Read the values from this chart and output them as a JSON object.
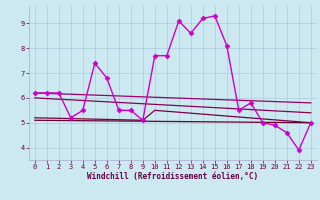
{
  "xlabel": "Windchill (Refroidissement éolien,°C)",
  "background_color": "#cce8f0",
  "grid_color": "#aaccdd",
  "xlim": [
    -0.5,
    23.5
  ],
  "ylim": [
    3.5,
    9.7
  ],
  "yticks": [
    4,
    5,
    6,
    7,
    8,
    9
  ],
  "xticks": [
    0,
    1,
    2,
    3,
    4,
    5,
    6,
    7,
    8,
    9,
    10,
    11,
    12,
    13,
    14,
    15,
    16,
    17,
    18,
    19,
    20,
    21,
    22,
    23
  ],
  "series": [
    {
      "x": [
        0,
        1,
        2,
        3,
        4,
        5,
        6,
        7,
        8,
        9,
        10,
        11,
        12,
        13,
        14,
        15,
        16,
        17,
        18,
        19,
        20,
        21,
        22,
        23
      ],
      "y": [
        6.2,
        6.2,
        6.2,
        5.2,
        5.5,
        7.4,
        6.8,
        5.5,
        5.5,
        5.1,
        7.7,
        7.7,
        9.1,
        8.6,
        9.2,
        9.3,
        8.1,
        5.5,
        5.8,
        5.0,
        4.9,
        4.6,
        3.9,
        5.0
      ],
      "color": "#cc00cc",
      "lw": 1.0,
      "marker": "D",
      "ms": 2.5
    },
    {
      "x": [
        0,
        23
      ],
      "y": [
        6.2,
        5.8
      ],
      "color": "#990066",
      "lw": 0.9,
      "marker": null,
      "ms": 0
    },
    {
      "x": [
        0,
        23
      ],
      "y": [
        6.0,
        5.4
      ],
      "color": "#880055",
      "lw": 0.9,
      "marker": null,
      "ms": 0
    },
    {
      "x": [
        0,
        9,
        10,
        23
      ],
      "y": [
        5.2,
        5.1,
        5.5,
        5.0
      ],
      "color": "#770044",
      "lw": 0.9,
      "marker": null,
      "ms": 0
    },
    {
      "x": [
        0,
        23
      ],
      "y": [
        5.1,
        5.0
      ],
      "color": "#660033",
      "lw": 0.9,
      "marker": null,
      "ms": 0
    }
  ]
}
